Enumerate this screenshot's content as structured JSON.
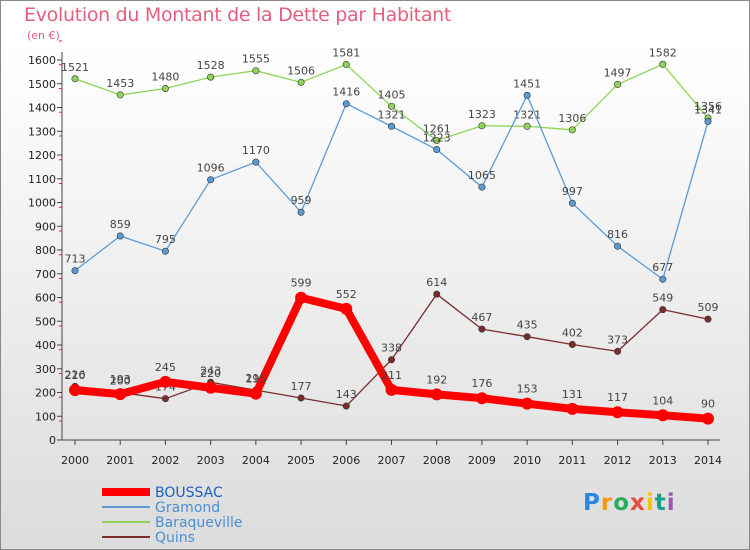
{
  "chart_data": {
    "type": "line",
    "title": "Evolution du Montant de la Dette par Habitant",
    "subtitle": "(en €)",
    "x": [
      "2000",
      "2001",
      "2002",
      "2003",
      "2004",
      "2005",
      "2006",
      "2007",
      "2008",
      "2009",
      "2010",
      "2011",
      "2012",
      "2013",
      "2014"
    ],
    "ylim": [
      0,
      1600
    ],
    "yticks": [
      0,
      100,
      200,
      300,
      400,
      500,
      600,
      700,
      800,
      900,
      1000,
      1100,
      1200,
      1300,
      1400,
      1500,
      1600
    ],
    "grid": false,
    "legend_position": "bottom-left",
    "series": [
      {
        "name": "BOUSSAC",
        "color": "#ff0000",
        "values": [
          210,
          193,
          245,
          220,
          195,
          599,
          552,
          211,
          192,
          176,
          153,
          131,
          117,
          104,
          90
        ]
      },
      {
        "name": "Gramond",
        "color": "#5b9bd5",
        "values": [
          713,
          859,
          795,
          1096,
          1170,
          959,
          1416,
          1321,
          1223,
          1065,
          1451,
          997,
          816,
          677,
          1341
        ]
      },
      {
        "name": "Baraqueville",
        "color": "#8fd45a",
        "values": [
          1521,
          1453,
          1480,
          1528,
          1555,
          1506,
          1581,
          1405,
          1261,
          1323,
          1321,
          1306,
          1497,
          1582,
          1356
        ]
      },
      {
        "name": "Quins",
        "color": "#7b2c2c",
        "values": [
          226,
          200,
          174,
          243,
          210,
          177,
          143,
          338,
          614,
          467,
          435,
          402,
          373,
          549,
          509
        ]
      }
    ]
  },
  "logo": {
    "letters": [
      "P",
      "r",
      "o",
      "x",
      "i",
      "t",
      "i"
    ],
    "colors": [
      "#2e86de",
      "#f39c12",
      "#27ae60",
      "#e74c3c",
      "#f1c40f",
      "#16a085",
      "#9b59b6"
    ]
  }
}
